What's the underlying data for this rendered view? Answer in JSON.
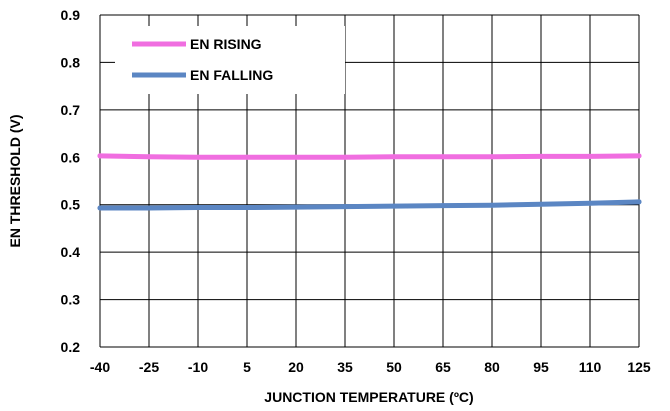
{
  "chart_data": {
    "type": "line",
    "xlabel": "JUNCTION TEMPERATURE (ºC)",
    "ylabel": "EN THRESHOLD (V)",
    "x": [
      -40,
      -25,
      -10,
      5,
      20,
      35,
      50,
      65,
      80,
      95,
      110,
      125
    ],
    "xlim": [
      -40,
      125
    ],
    "ylim": [
      0.2,
      0.9
    ],
    "yticks": [
      "0.2",
      "0.3",
      "0.4",
      "0.5",
      "0.6",
      "0.7",
      "0.8",
      "0.9"
    ],
    "xticks": [
      "-40",
      "-25",
      "-10",
      "5",
      "20",
      "35",
      "50",
      "65",
      "80",
      "95",
      "110",
      "125"
    ],
    "grid": true,
    "legend_position": "top-left",
    "series": [
      {
        "name": "EN RISING",
        "color": "#f06ee0",
        "values": [
          0.603,
          0.601,
          0.6,
          0.6,
          0.6,
          0.6,
          0.601,
          0.601,
          0.601,
          0.602,
          0.602,
          0.603
        ]
      },
      {
        "name": "EN FALLING",
        "color": "#5b86c3",
        "values": [
          0.493,
          0.493,
          0.494,
          0.494,
          0.495,
          0.496,
          0.497,
          0.498,
          0.499,
          0.501,
          0.503,
          0.506
        ]
      }
    ]
  }
}
